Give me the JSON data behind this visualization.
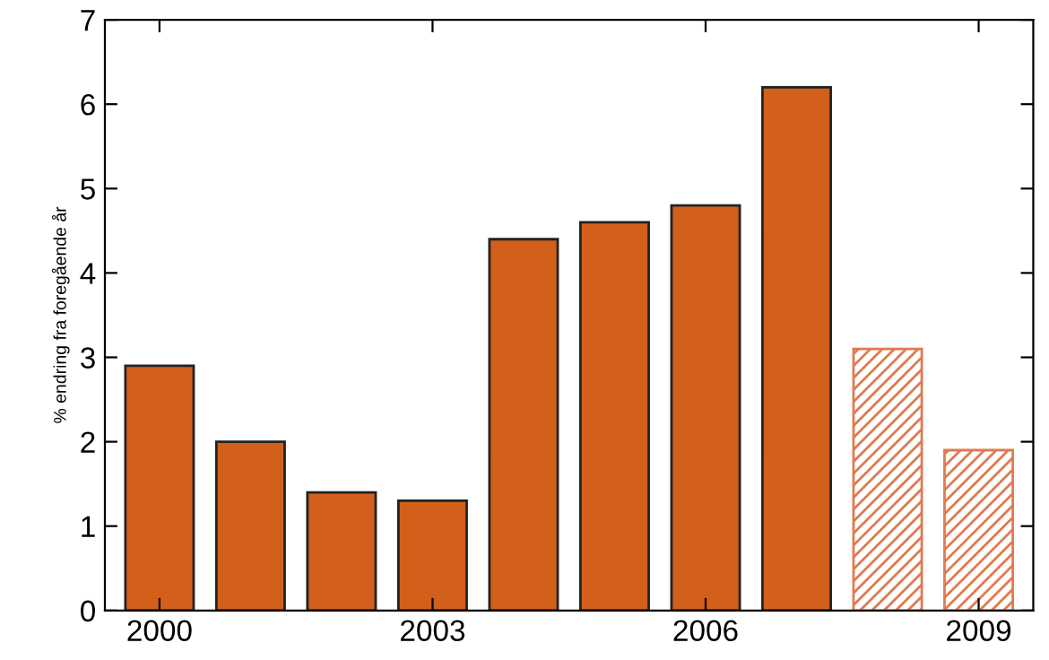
{
  "chart_data": {
    "type": "bar",
    "ylabel": "% endring fra foregående år",
    "categories": [
      "2000",
      null,
      null,
      "2003",
      null,
      null,
      "2006",
      null,
      null,
      "2009"
    ],
    "series": [
      {
        "color": "#d2601a",
        "values": [
          2.9,
          2.0,
          1.4,
          1.3,
          4.4,
          4.6,
          4.8,
          6.2,
          null,
          null
        ]
      },
      {
        "color": "#e07a50",
        "values": [
          null,
          null,
          null,
          null,
          null,
          null,
          null,
          null,
          3.1,
          1.9
        ]
      }
    ],
    "ylim": [
      0,
      7
    ],
    "yticks": [
      0,
      1,
      2,
      3,
      4,
      5,
      6,
      7
    ],
    "grid": false,
    "legend": false
  }
}
